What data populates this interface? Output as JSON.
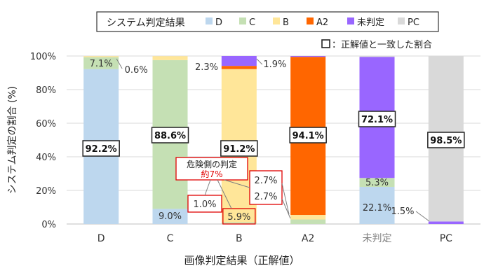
{
  "chart_data": {
    "type": "bar",
    "stacked": true,
    "title": "",
    "xlabel": "画像判定結果（正解値）",
    "ylabel": "システム判定の割合 (%)",
    "ylim": [
      0,
      100
    ],
    "yticks": [
      "0%",
      "20%",
      "40%",
      "60%",
      "80%",
      "100%"
    ],
    "categories": [
      "D",
      "C",
      "B",
      "A2",
      "未判定",
      "PC"
    ],
    "legend_title": "システム判定結果",
    "legend_position": "top",
    "grid": true,
    "series": [
      {
        "name": "D",
        "color": "#bdd7ee",
        "values": [
          92.2,
          9.0,
          0,
          0,
          22.1,
          0
        ]
      },
      {
        "name": "C",
        "color": "#c5e0b4",
        "values": [
          7.1,
          88.6,
          1.0,
          2.7,
          5.3,
          0
        ]
      },
      {
        "name": "B",
        "color": "#ffe699",
        "values": [
          0.6,
          2.3,
          91.2,
          2.7,
          0,
          0
        ]
      },
      {
        "name": "A2",
        "color": "#ff6600",
        "values": [
          0,
          0,
          1.9,
          94.1,
          0,
          0
        ]
      },
      {
        "name": "未判定",
        "color": "#9966ff",
        "values": [
          0,
          0,
          5.9,
          0.5,
          72.1,
          1.5
        ]
      },
      {
        "name": "PC",
        "color": "#d9d9d9",
        "values": [
          0,
          0,
          0,
          0,
          0.5,
          98.5
        ]
      }
    ],
    "correct_box_legend": "：正解値と一致した割合",
    "correct_labels": [
      "92.2%",
      "88.6%",
      "91.2%",
      "94.1%",
      "72.1%",
      "98.5%"
    ],
    "labels": {
      "d_c": "7.1%",
      "d_b": "0.6%",
      "c_d": "9.0%",
      "c_b": "2.3%",
      "b_c": "1.0%",
      "b_a2": "1.9%",
      "b_un": "5.9%",
      "a2_c": "2.7%",
      "a2_b": "2.7%",
      "un_d": "22.1%",
      "un_c": "5.3%",
      "pc_un": "1.5%"
    },
    "danger_note_line1": "危険側の判定",
    "danger_note_line2": "約7%"
  }
}
